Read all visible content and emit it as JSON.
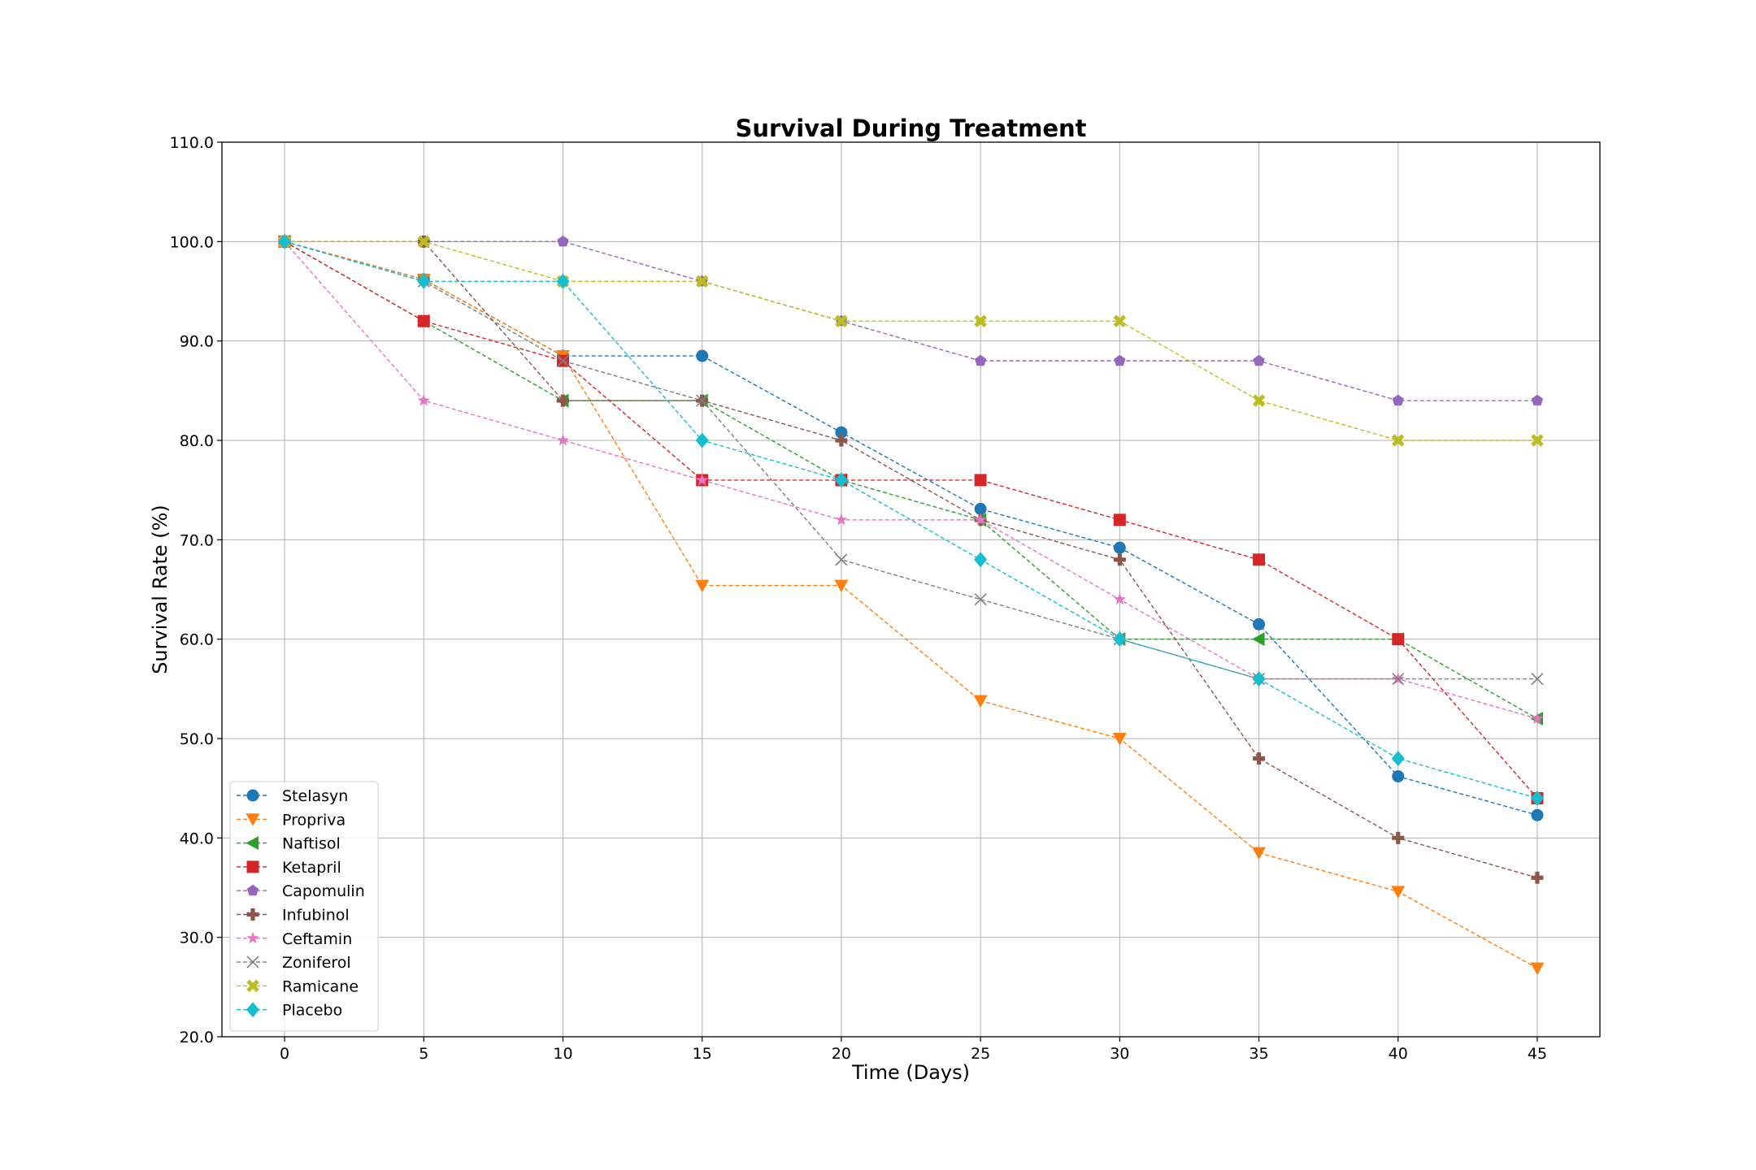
{
  "chart_data": {
    "type": "line",
    "title": "Survival During Treatment",
    "xlabel": "Time (Days)",
    "ylabel": "Survival Rate (%)",
    "xlim": [
      -2.25,
      47.25
    ],
    "ylim": [
      20,
      110
    ],
    "x_ticks": [
      "0",
      "5",
      "10",
      "15",
      "20",
      "25",
      "30",
      "35",
      "40",
      "45"
    ],
    "y_ticks": [
      "20.0",
      "30.0",
      "40.0",
      "50.0",
      "60.0",
      "70.0",
      "80.0",
      "90.0",
      "100.0",
      "110.0"
    ],
    "grid": true,
    "legend_position": "lower-left",
    "x": [
      0,
      5,
      10,
      15,
      20,
      25,
      30,
      35,
      40,
      45
    ],
    "series": [
      {
        "name": "Stelasyn",
        "color": "#1f77b4",
        "marker": "circle",
        "values": [
          100.0,
          96.2,
          88.5,
          88.5,
          80.8,
          73.1,
          69.2,
          61.5,
          46.2,
          42.3
        ]
      },
      {
        "name": "Propriva",
        "color": "#ff7f0e",
        "marker": "triangle-down",
        "values": [
          100.0,
          96.2,
          88.5,
          65.4,
          65.4,
          53.8,
          50.0,
          38.5,
          34.6,
          26.9
        ]
      },
      {
        "name": "Naftisol",
        "color": "#2ca02c",
        "marker": "triangle-left",
        "values": [
          100.0,
          92.0,
          84.0,
          84.0,
          76.0,
          72.0,
          60.0,
          60.0,
          60.0,
          52.0
        ]
      },
      {
        "name": "Ketapril",
        "color": "#d62728",
        "marker": "square",
        "values": [
          100.0,
          92.0,
          88.0,
          76.0,
          76.0,
          76.0,
          72.0,
          68.0,
          60.0,
          44.0
        ]
      },
      {
        "name": "Capomulin",
        "color": "#9467bd",
        "marker": "pentagon",
        "values": [
          100.0,
          100.0,
          100.0,
          96.0,
          92.0,
          88.0,
          88.0,
          88.0,
          84.0,
          84.0
        ]
      },
      {
        "name": "Infubinol",
        "color": "#8c564b",
        "marker": "plus",
        "values": [
          100.0,
          100.0,
          84.0,
          84.0,
          80.0,
          72.0,
          68.0,
          48.0,
          40.0,
          36.0
        ]
      },
      {
        "name": "Ceftamin",
        "color": "#e377c2",
        "marker": "star",
        "values": [
          100.0,
          84.0,
          80.0,
          76.0,
          72.0,
          72.0,
          64.0,
          56.0,
          56.0,
          52.0
        ]
      },
      {
        "name": "Zoniferol",
        "color": "#7f7f7f",
        "marker": "x",
        "values": [
          100.0,
          96.0,
          88.0,
          84.0,
          68.0,
          64.0,
          60.0,
          56.0,
          56.0,
          56.0
        ]
      },
      {
        "name": "Ramicane",
        "color": "#bcbd22",
        "marker": "x-filled",
        "values": [
          100.0,
          100.0,
          96.0,
          96.0,
          92.0,
          92.0,
          92.0,
          84.0,
          80.0,
          80.0
        ]
      },
      {
        "name": "Placebo",
        "color": "#17becf",
        "marker": "diamond",
        "values": [
          100.0,
          96.0,
          96.0,
          80.0,
          76.0,
          68.0,
          60.0,
          56.0,
          48.0,
          44.0
        ]
      }
    ]
  }
}
